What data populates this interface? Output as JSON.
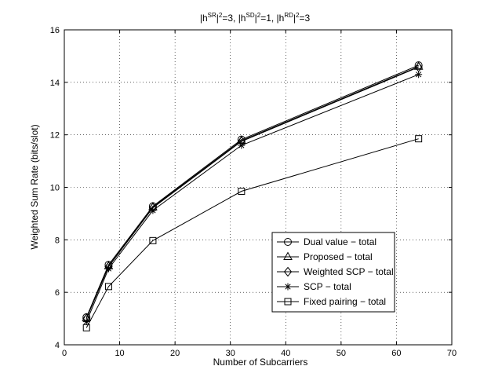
{
  "chart_data": {
    "type": "line",
    "title_parts": {
      "a": "|h",
      "a_sup": "SR",
      "a_rest": "|",
      "a_pow": "2",
      "a_eq": "=3, ",
      "b": "|h",
      "b_sup": "SD",
      "b_rest": "|",
      "b_pow": "2",
      "b_eq": "=1, ",
      "c": "|h",
      "c_sup": "RD",
      "c_rest": "|",
      "c_pow": "2",
      "c_eq": "=3"
    },
    "xlabel": "Number of Subcarriers",
    "ylabel": "Weighted Sum Rate  (bits/slot)",
    "xlim": [
      0,
      70
    ],
    "ylim": [
      4,
      16
    ],
    "xticks": [
      0,
      10,
      20,
      30,
      40,
      50,
      60,
      70
    ],
    "yticks": [
      4,
      6,
      8,
      10,
      12,
      14,
      16
    ],
    "grid": true,
    "legend_position": "lower-right",
    "x": [
      4,
      8,
      16,
      32,
      64
    ],
    "series": [
      {
        "name": "Dual value − total",
        "marker": "circle",
        "values": [
          5.05,
          7.05,
          9.28,
          11.82,
          14.65
        ]
      },
      {
        "name": "Proposed − total",
        "marker": "triangle",
        "values": [
          5.02,
          7.0,
          9.25,
          11.78,
          14.6
        ]
      },
      {
        "name": "Weighted SCP − total",
        "marker": "diamond",
        "values": [
          5.0,
          6.98,
          9.22,
          11.75,
          14.58
        ]
      },
      {
        "name": "SCP − total",
        "marker": "star",
        "values": [
          4.88,
          6.9,
          9.12,
          11.6,
          14.3
        ]
      },
      {
        "name": "Fixed pairing − total",
        "marker": "square",
        "values": [
          4.65,
          6.22,
          7.97,
          9.85,
          11.85
        ]
      }
    ],
    "line_color": "#000000"
  }
}
